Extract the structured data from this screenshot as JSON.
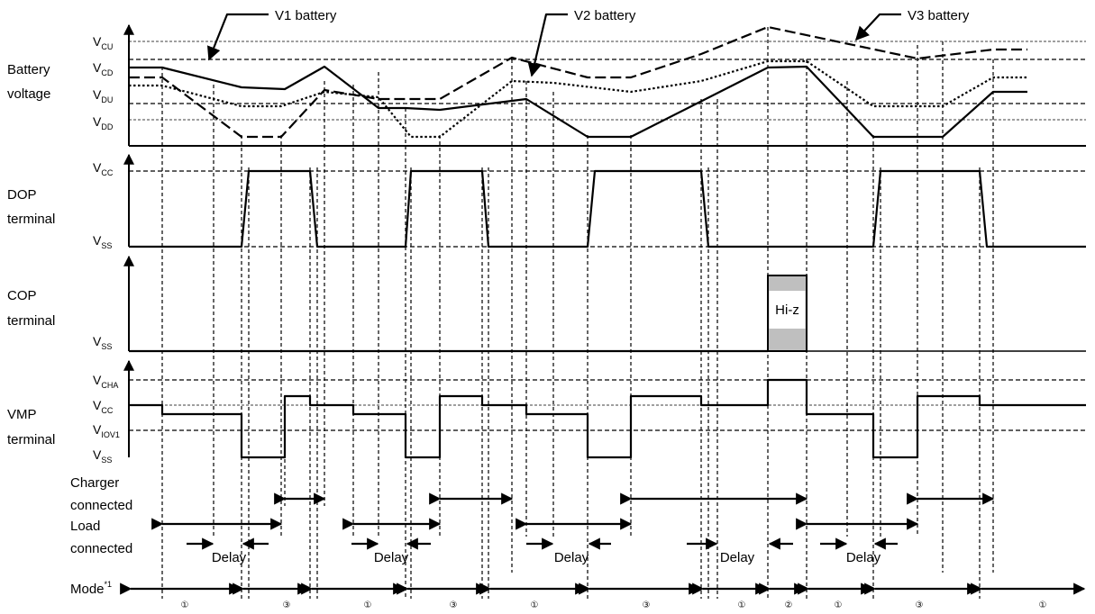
{
  "callouts": {
    "v1": "V1 battery",
    "v2": "V2 battery",
    "v3": "V3 battery"
  },
  "rows": {
    "battery": {
      "line1": "Battery",
      "line2": "voltage"
    },
    "dop": {
      "line1": "DOP",
      "line2": "terminal"
    },
    "cop": {
      "line1": "COP",
      "line2": "terminal"
    },
    "vmp": {
      "line1": "VMP",
      "line2": "terminal"
    },
    "charger": {
      "line1": "Charger",
      "line2": "connected"
    },
    "load": {
      "line1": "Load",
      "line2": "connected"
    },
    "mode": {
      "label": "Mode",
      "sup": "*1"
    }
  },
  "levels": {
    "vcu": {
      "main": "V",
      "sub": "CU"
    },
    "vcd": {
      "main": "V",
      "sub": "CD"
    },
    "vdu": {
      "main": "V",
      "sub": "DU"
    },
    "vdd": {
      "main": "V",
      "sub": "DD"
    },
    "dop_vcc": {
      "main": "V",
      "sub": "CC"
    },
    "dop_vss": {
      "main": "V",
      "sub": "SS"
    },
    "cop_vss": {
      "main": "V",
      "sub": "SS"
    },
    "vmp_vcha": {
      "main": "V",
      "sub": "CHA"
    },
    "vmp_vcc": {
      "main": "V",
      "sub": "CC"
    },
    "vmp_viov1": {
      "main": "V",
      "sub": "IOV1"
    },
    "vmp_vss": {
      "main": "V",
      "sub": "SS"
    }
  },
  "hiz_label": "Hi-z",
  "delay_label": "Delay",
  "modes": [
    "①",
    "③",
    "①",
    "③",
    "①",
    "③",
    "①",
    "②",
    "①",
    "③",
    "①"
  ]
}
